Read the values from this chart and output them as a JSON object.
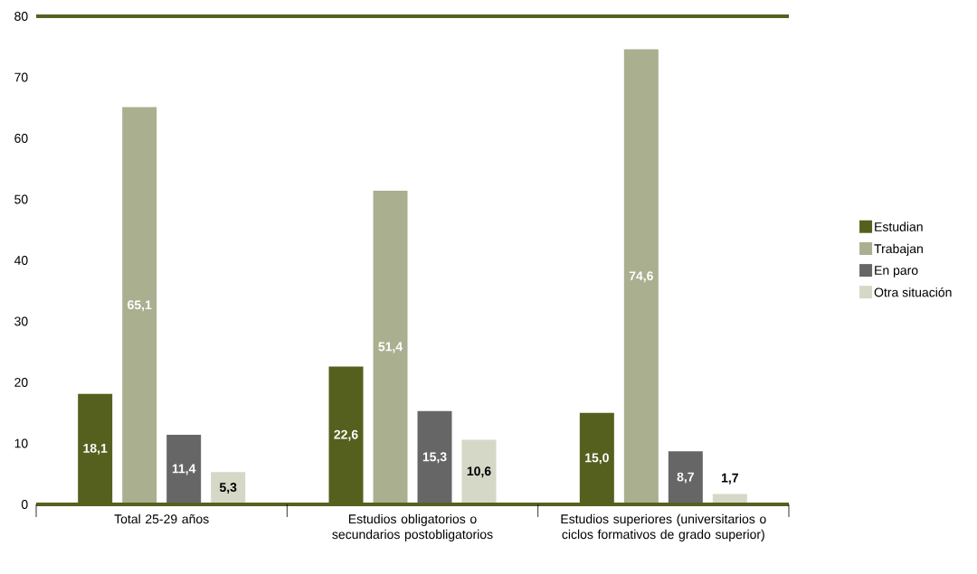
{
  "chart_data": {
    "type": "bar",
    "categories": [
      "Total 25-29 años",
      "Estudios obligatorios o secundarios postobligatorios",
      "Estudios superiores (universitarios o ciclos formativos de grado superior)"
    ],
    "series": [
      {
        "name": "Estudian",
        "color": "#55601f",
        "values": [
          18.1,
          22.6,
          15.0
        ],
        "value_labels": [
          "18,1",
          "22,6",
          "15,0"
        ]
      },
      {
        "name": "Trabajan",
        "color": "#aab08f",
        "values": [
          65.1,
          51.4,
          74.6
        ],
        "value_labels": [
          "65,1",
          "51,4",
          "74,6"
        ]
      },
      {
        "name": "En paro",
        "color": "#666666",
        "values": [
          11.4,
          15.3,
          8.7
        ],
        "value_labels": [
          "11,4",
          "15,3",
          "8,7"
        ]
      },
      {
        "name": "Otra situación",
        "color": "#d5d8c6",
        "values": [
          5.3,
          10.6,
          1.7
        ],
        "value_labels": [
          "5,3",
          "10,6",
          "1,7"
        ]
      }
    ],
    "ylim": [
      0,
      80
    ],
    "yticks": [
      0,
      10,
      20,
      30,
      40,
      50,
      60,
      70,
      80
    ],
    "grid": false,
    "legend": "right"
  }
}
